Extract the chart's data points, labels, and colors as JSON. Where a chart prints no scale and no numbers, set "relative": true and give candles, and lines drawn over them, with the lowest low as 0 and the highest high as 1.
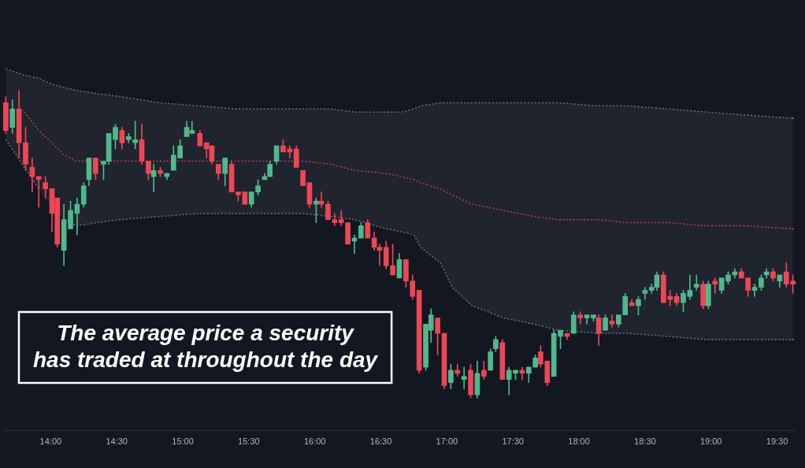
{
  "chart_data": {
    "type": "candlestick",
    "relative": true,
    "annotations": [
      "The average price a security has traded at throughout the day"
    ],
    "xlim": [
      13.64,
      19.64
    ],
    "xticks": [
      {
        "value": 14,
        "label": "14:00"
      },
      {
        "value": 14.5,
        "label": "14:30"
      },
      {
        "value": 15,
        "label": "15:00"
      },
      {
        "value": 15.5,
        "label": "15:30"
      },
      {
        "value": 16,
        "label": "16:00"
      },
      {
        "value": 16.5,
        "label": "16:30"
      },
      {
        "value": 17,
        "label": "17:00"
      },
      {
        "value": 17.5,
        "label": "17:30"
      },
      {
        "value": 18,
        "label": "18:00"
      },
      {
        "value": 18.5,
        "label": "18:30"
      },
      {
        "value": 19,
        "label": "19:00"
      },
      {
        "value": 19.5,
        "label": "19:30"
      }
    ],
    "x": [
      13.66,
      13.71,
      13.76,
      13.81,
      13.86,
      13.91,
      13.96,
      14.01,
      14.05,
      14.1,
      14.15,
      14.2,
      14.25,
      14.29,
      14.34,
      14.4,
      14.44,
      14.49,
      14.54,
      14.59,
      14.64,
      14.69,
      14.74,
      14.78,
      14.83,
      14.88,
      14.93,
      14.98,
      15.03,
      15.07,
      15.13,
      15.18,
      15.22,
      15.27,
      15.32,
      15.37,
      15.42,
      15.47,
      15.52,
      15.57,
      15.62,
      15.66,
      15.71,
      15.76,
      15.81,
      15.86,
      15.91,
      15.96,
      16.01,
      16.05,
      16.1,
      16.15,
      16.2,
      16.25,
      16.3,
      16.35,
      16.4,
      16.45,
      16.49,
      16.54,
      16.59,
      16.64,
      16.69,
      16.74,
      16.79,
      16.84,
      16.88,
      16.93,
      16.98,
      17.03,
      17.08,
      17.13,
      17.18,
      17.23,
      17.28,
      17.33,
      17.37,
      17.42,
      17.47,
      17.52,
      17.57,
      17.62,
      17.67,
      17.71,
      17.76,
      17.81,
      17.86,
      17.91,
      17.96,
      18.01,
      18.06,
      18.11,
      18.15,
      18.2,
      18.25,
      18.3,
      18.35,
      18.4,
      18.45,
      18.5,
      18.55,
      18.59,
      18.64,
      18.69,
      18.74,
      18.79,
      18.84,
      18.89,
      18.94,
      18.98,
      19.03,
      19.08,
      19.13,
      19.18,
      19.23,
      19.28,
      19.33,
      19.38,
      19.42,
      19.47,
      19.52,
      19.57,
      19.62
    ],
    "ohlc": [
      [
        0.96,
        0.98,
        0.86,
        0.87
      ],
      [
        0.88,
        0.97,
        0.86,
        0.94
      ],
      [
        0.94,
        1,
        0.78,
        0.83
      ],
      [
        0.83,
        0.88,
        0.74,
        0.76
      ],
      [
        0.75,
        0.78,
        0.67,
        0.72
      ],
      [
        0.72,
        0.72,
        0.62,
        0.71
      ],
      [
        0.7,
        0.72,
        0.65,
        0.68
      ],
      [
        0.68,
        0.68,
        0.54,
        0.6
      ],
      [
        0.65,
        0.65,
        0.49,
        0.5
      ],
      [
        0.48,
        0.63,
        0.43,
        0.58
      ],
      [
        0.55,
        0.64,
        0.55,
        0.61
      ],
      [
        0.6,
        0.65,
        0.53,
        0.63
      ],
      [
        0.63,
        0.7,
        0.62,
        0.69
      ],
      [
        0.71,
        0.78,
        0.69,
        0.78
      ],
      [
        0.78,
        0.78,
        0.71,
        0.73
      ],
      [
        0.76,
        0.77,
        0.71,
        0.77
      ],
      [
        0.77,
        0.86,
        0.76,
        0.86
      ],
      [
        0.84,
        0.89,
        0.81,
        0.88
      ],
      [
        0.87,
        0.88,
        0.81,
        0.83
      ],
      [
        0.84,
        0.86,
        0.83,
        0.85
      ],
      [
        0.83,
        0.9,
        0.81,
        0.84
      ],
      [
        0.84,
        0.89,
        0.76,
        0.77
      ],
      [
        0.77,
        0.77,
        0.71,
        0.73
      ],
      [
        0.72,
        0.76,
        0.67,
        0.74
      ],
      [
        0.74,
        0.75,
        0.72,
        0.73
      ],
      [
        0.72,
        0.73,
        0.71,
        0.73
      ],
      [
        0.74,
        0.82,
        0.74,
        0.79
      ],
      [
        0.78,
        0.84,
        0.78,
        0.82
      ],
      [
        0.85,
        0.9,
        0.85,
        0.88
      ],
      [
        0.86,
        0.9,
        0.86,
        0.87
      ],
      [
        0.86,
        0.87,
        0.82,
        0.82
      ],
      [
        0.83,
        0.83,
        0.78,
        0.81
      ],
      [
        0.82,
        0.82,
        0.76,
        0.77
      ],
      [
        0.76,
        0.76,
        0.71,
        0.73
      ],
      [
        0.73,
        0.78,
        0.69,
        0.78
      ],
      [
        0.76,
        0.77,
        0.67,
        0.67
      ],
      [
        0.67,
        0.67,
        0.64,
        0.66
      ],
      [
        0.67,
        0.67,
        0.63,
        0.63
      ],
      [
        0.63,
        0.67,
        0.62,
        0.67
      ],
      [
        0.67,
        0.71,
        0.66,
        0.69
      ],
      [
        0.71,
        0.73,
        0.71,
        0.72
      ],
      [
        0.72,
        0.77,
        0.72,
        0.76
      ],
      [
        0.77,
        0.82,
        0.76,
        0.82
      ],
      [
        0.82,
        0.84,
        0.8,
        0.8
      ],
      [
        0.81,
        0.82,
        0.78,
        0.8
      ],
      [
        0.81,
        0.82,
        0.75,
        0.75
      ],
      [
        0.74,
        0.74,
        0.69,
        0.69
      ],
      [
        0.7,
        0.7,
        0.62,
        0.63
      ],
      [
        0.63,
        0.65,
        0.57,
        0.64
      ],
      [
        0.64,
        0.67,
        0.62,
        0.63
      ],
      [
        0.63,
        0.64,
        0.58,
        0.58
      ],
      [
        0.58,
        0.6,
        0.56,
        0.57
      ],
      [
        0.58,
        0.61,
        0.56,
        0.57
      ],
      [
        0.57,
        0.57,
        0.5,
        0.5
      ],
      [
        0.51,
        0.53,
        0.47,
        0.52
      ],
      [
        0.52,
        0.57,
        0.52,
        0.56
      ],
      [
        0.57,
        0.58,
        0.52,
        0.52
      ],
      [
        0.52,
        0.54,
        0.48,
        0.49
      ],
      [
        0.49,
        0.5,
        0.43,
        0.48
      ],
      [
        0.49,
        0.51,
        0.42,
        0.43
      ],
      [
        0.43,
        0.5,
        0.4,
        0.4
      ],
      [
        0.39,
        0.47,
        0.39,
        0.45
      ],
      [
        0.45,
        0.45,
        0.36,
        0.38
      ],
      [
        0.38,
        0.4,
        0.32,
        0.33
      ],
      [
        0.35,
        0.35,
        0.08,
        0.09
      ],
      [
        0.1,
        0.24,
        0.09,
        0.24
      ],
      [
        0.22,
        0.29,
        0.18,
        0.27
      ],
      [
        0.26,
        0.26,
        0.14,
        0.21
      ],
      [
        0.21,
        0.21,
        0.03,
        0.04
      ],
      [
        0.05,
        0.11,
        0.03,
        0.09
      ],
      [
        0.09,
        0.11,
        0.07,
        0.08
      ],
      [
        0.06,
        0.1,
        0.03,
        0.07
      ],
      [
        0.09,
        0.11,
        0,
        0.01
      ],
      [
        0.01,
        0.12,
        0,
        0.08
      ],
      [
        0.09,
        0.12,
        0.06,
        0.07
      ],
      [
        0.09,
        0.16,
        0.09,
        0.15
      ],
      [
        0.16,
        0.2,
        0.15,
        0.19
      ],
      [
        0.18,
        0.19,
        0.06,
        0.06
      ],
      [
        0.06,
        0.1,
        0.01,
        0.09
      ],
      [
        0.08,
        0.09,
        0.06,
        0.09
      ],
      [
        0.09,
        0.1,
        0.06,
        0.08
      ],
      [
        0.08,
        0.1,
        0.05,
        0.1
      ],
      [
        0.1,
        0.14,
        0.1,
        0.13
      ],
      [
        0.15,
        0.17,
        0.1,
        0.11
      ],
      [
        0.12,
        0.12,
        0.04,
        0.05
      ],
      [
        0.07,
        0.22,
        0.07,
        0.21
      ],
      [
        0.2,
        0.22,
        0.16,
        0.22
      ],
      [
        0.21,
        0.21,
        0.19,
        0.2
      ],
      [
        0.21,
        0.28,
        0.21,
        0.27
      ],
      [
        0.27,
        0.28,
        0.24,
        0.26
      ],
      [
        0.26,
        0.27,
        0.24,
        0.27
      ],
      [
        0.26,
        0.27,
        0.25,
        0.27
      ],
      [
        0.26,
        0.27,
        0.17,
        0.21
      ],
      [
        0.22,
        0.27,
        0.22,
        0.26
      ],
      [
        0.25,
        0.27,
        0.23,
        0.24
      ],
      [
        0.24,
        0.27,
        0.23,
        0.27
      ],
      [
        0.27,
        0.34,
        0.27,
        0.33
      ],
      [
        0.31,
        0.32,
        0.3,
        0.3
      ],
      [
        0.3,
        0.33,
        0.27,
        0.32
      ],
      [
        0.34,
        0.36,
        0.32,
        0.35
      ],
      [
        0.35,
        0.37,
        0.34,
        0.36
      ],
      [
        0.36,
        0.41,
        0.35,
        0.4
      ],
      [
        0.4,
        0.41,
        0.31,
        0.31
      ],
      [
        0.33,
        0.35,
        0.3,
        0.32
      ],
      [
        0.33,
        0.34,
        0.3,
        0.31
      ],
      [
        0.31,
        0.35,
        0.28,
        0.34
      ],
      [
        0.33,
        0.4,
        0.32,
        0.35
      ],
      [
        0.36,
        0.4,
        0.35,
        0.37
      ],
      [
        0.37,
        0.38,
        0.29,
        0.3
      ],
      [
        0.3,
        0.38,
        0.29,
        0.37
      ],
      [
        0.38,
        0.39,
        0.34,
        0.37
      ],
      [
        0.35,
        0.39,
        0.34,
        0.39
      ],
      [
        0.38,
        0.41,
        0.37,
        0.4
      ],
      [
        0.4,
        0.42,
        0.39,
        0.41
      ],
      [
        0.41,
        0.42,
        0.39,
        0.39
      ],
      [
        0.39,
        0.39,
        0.33,
        0.35
      ],
      [
        0.35,
        0.37,
        0.33,
        0.36
      ],
      [
        0.36,
        0.4,
        0.35,
        0.39
      ],
      [
        0.4,
        0.42,
        0.39,
        0.41
      ],
      [
        0.41,
        0.42,
        0.38,
        0.39
      ],
      [
        0.38,
        0.4,
        0.36,
        0.4
      ],
      [
        0.41,
        0.44,
        0.36,
        0.37
      ],
      [
        0.38,
        0.4,
        0.34,
        0.37
      ]
    ],
    "colors": [
      "#ef4655",
      "#51b88c",
      "#ef4655",
      "#ef4655",
      "#ef4655",
      "#ef4655",
      "#ef4655",
      "#ef4655",
      "#ef4655",
      "#51b88c",
      "#51b88c",
      "#51b88c",
      "#51b88c",
      "#51b88c",
      "#ef4655",
      "#51b88c",
      "#51b88c",
      "#51b88c",
      "#ef4655",
      "#51b88c",
      "#51b88c",
      "#ef4655",
      "#ef4655",
      "#51b88c",
      "#ef4655",
      "#51b88c",
      "#51b88c",
      "#51b88c",
      "#51b88c",
      "#51b88c",
      "#ef4655",
      "#ef4655",
      "#ef4655",
      "#ef4655",
      "#51b88c",
      "#ef4655",
      "#ef4655",
      "#ef4655",
      "#51b88c",
      "#51b88c",
      "#51b88c",
      "#51b88c",
      "#51b88c",
      "#ef4655",
      "#ef4655",
      "#ef4655",
      "#ef4655",
      "#ef4655",
      "#51b88c",
      "#ef4655",
      "#ef4655",
      "#ef4655",
      "#ef4655",
      "#ef4655",
      "#51b88c",
      "#51b88c",
      "#ef4655",
      "#ef4655",
      "#ef4655",
      "#ef4655",
      "#ef4655",
      "#51b88c",
      "#ef4655",
      "#ef4655",
      "#ef4655",
      "#51b88c",
      "#51b88c",
      "#ef4655",
      "#ef4655",
      "#51b88c",
      "#ef4655",
      "#51b88c",
      "#ef4655",
      "#51b88c",
      "#ef4655",
      "#51b88c",
      "#51b88c",
      "#ef4655",
      "#51b88c",
      "#51b88c",
      "#ef4655",
      "#51b88c",
      "#51b88c",
      "#ef4655",
      "#ef4655",
      "#51b88c",
      "#51b88c",
      "#ef4655",
      "#51b88c",
      "#ef4655",
      "#51b88c",
      "#51b88c",
      "#ef4655",
      "#51b88c",
      "#ef4655",
      "#51b88c",
      "#51b88c",
      "#ef4655",
      "#51b88c",
      "#51b88c",
      "#51b88c",
      "#51b88c",
      "#ef4655",
      "#ef4655",
      "#ef4655",
      "#51b88c",
      "#51b88c",
      "#51b88c",
      "#ef4655",
      "#51b88c",
      "#ef4655",
      "#51b88c",
      "#51b88c",
      "#51b88c",
      "#ef4655",
      "#ef4655",
      "#51b88c",
      "#51b88c",
      "#51b88c",
      "#ef4655",
      "#51b88c",
      "#ef4655",
      "#ef4655"
    ],
    "series": [
      {
        "type": "line",
        "color": "#c2404d",
        "line_style": "dotted",
        "x": [
          13.66,
          13.8,
          13.91,
          14.01,
          14.1,
          14.2,
          14.35,
          14.53,
          14.82,
          15.12,
          15.41,
          15.71,
          15.91,
          16.12,
          16.3,
          16.54,
          16.66,
          16.75,
          16.8,
          16.95,
          17.04,
          17.19,
          17.43,
          17.66,
          17.84,
          18.14,
          18.37,
          18.67,
          18.96,
          19.26,
          19.62
        ],
        "values": [
          null,
          0.93,
          0.87,
          0.83,
          0.79,
          0.77,
          0.77,
          0.77,
          0.77,
          0.77,
          0.77,
          0.77,
          0.77,
          0.76,
          0.74,
          0.73,
          0.72,
          0.71,
          0.7,
          0.68,
          0.66,
          0.63,
          0.61,
          0.59,
          0.58,
          0.58,
          0.57,
          0.57,
          0.56,
          0.56,
          0.55
        ],
        "upper": [
          1.07,
          1.05,
          1.04,
          1.02,
          1.01,
          1.0,
          0.99,
          0.98,
          0.96,
          0.95,
          0.94,
          0.94,
          0.94,
          0.94,
          0.93,
          0.93,
          0.93,
          0.94,
          0.95,
          0.96,
          0.96,
          0.96,
          0.96,
          0.96,
          0.96,
          0.95,
          0.95,
          0.94,
          0.93,
          0.92,
          0.91
        ],
        "lower": [
          0.84,
          0.75,
          0.68,
          0.62,
          0.58,
          0.56,
          0.57,
          0.58,
          0.59,
          0.6,
          0.6,
          0.6,
          0.6,
          0.59,
          0.58,
          0.55,
          0.54,
          0.53,
          0.49,
          0.44,
          0.36,
          0.3,
          0.26,
          0.24,
          0.22,
          0.21,
          0.21,
          0.2,
          0.19,
          0.19,
          0.19
        ]
      },
      {
        "type": "line",
        "color": "#6e7280",
        "line_style": "dotted",
        "x": [
          13.66,
          13.8,
          13.91,
          14.01,
          14.1,
          14.2,
          14.35,
          14.53,
          14.82,
          15.12,
          15.41,
          15.71,
          15.91,
          16.12,
          16.3,
          16.54,
          16.66,
          16.75,
          16.8,
          16.95,
          17.04,
          17.19,
          17.43,
          17.66,
          17.84,
          18.14,
          18.37,
          18.67,
          18.96,
          19.26,
          19.62
        ],
        "values": [
          1.07,
          1.05,
          1.04,
          1.02,
          1.01,
          1.0,
          0.99,
          0.98,
          0.96,
          0.95,
          0.94,
          0.94,
          0.94,
          0.94,
          0.93,
          0.93,
          0.93,
          0.94,
          0.95,
          0.96,
          0.96,
          0.96,
          0.96,
          0.96,
          0.96,
          0.95,
          0.95,
          0.94,
          0.93,
          0.92,
          0.91
        ]
      },
      {
        "type": "line",
        "color": "#6e7280",
        "line_style": "dotted",
        "x": [
          13.66,
          13.8,
          13.91,
          14.01,
          14.1,
          14.2,
          14.35,
          14.53,
          14.82,
          15.12,
          15.41,
          15.71,
          15.91,
          16.12,
          16.3,
          16.54,
          16.66,
          16.75,
          16.8,
          16.95,
          17.04,
          17.19,
          17.43,
          17.66,
          17.84,
          18.14,
          18.37,
          18.67,
          18.96,
          19.26,
          19.62
        ],
        "values": [
          0.84,
          0.75,
          0.68,
          null,
          0.58,
          0.56,
          0.57,
          0.58,
          0.59,
          0.6,
          0.6,
          0.6,
          0.6,
          0.59,
          0.58,
          0.55,
          0.54,
          0.53,
          0.49,
          0.44,
          0.36,
          0.3,
          0.26,
          0.24,
          0.22,
          0.21,
          0.21,
          0.2,
          0.19,
          0.19,
          0.19
        ]
      }
    ]
  }
}
